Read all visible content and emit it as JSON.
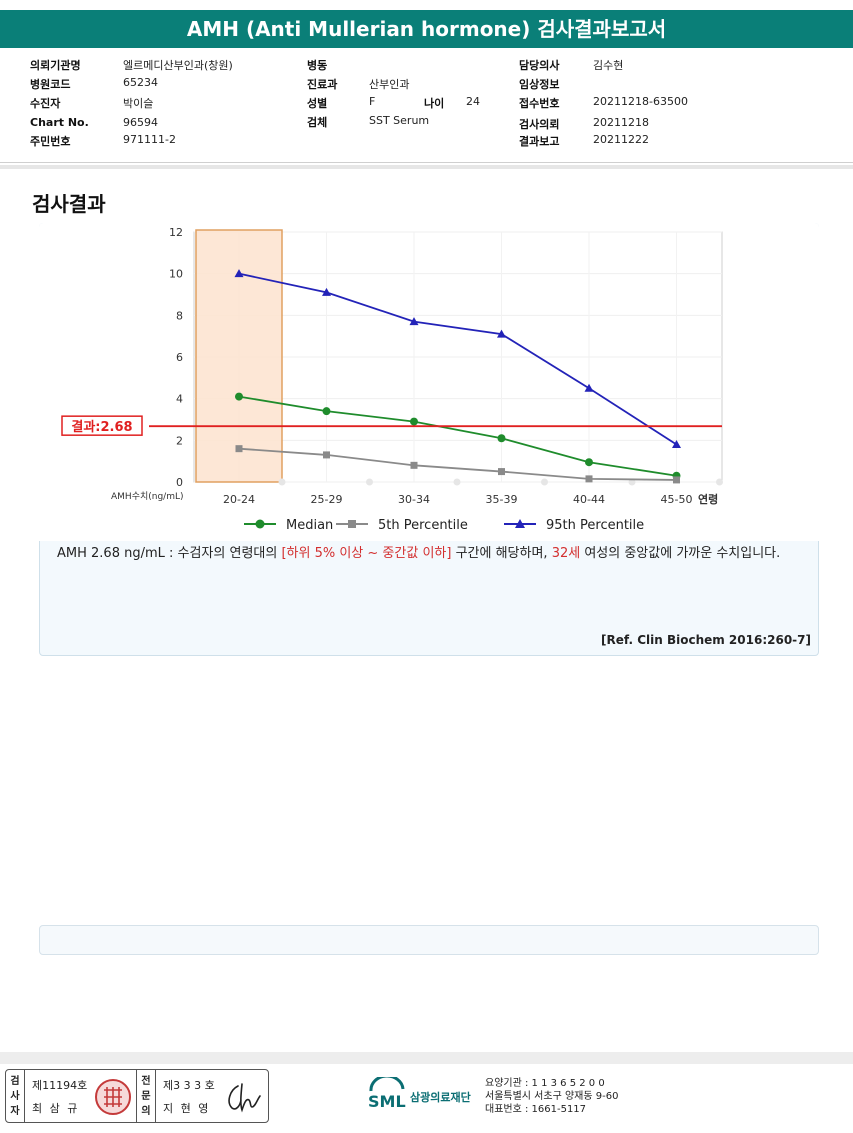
{
  "report_title": "AMH (Anti Mullerian hormone) 검사결과보고서",
  "info": {
    "institution_label": "의뢰기관명",
    "institution": "엘르메디산부인과(창원)",
    "hospital_code_label": "병원코드",
    "hospital_code": "65234",
    "patient_label": "수진자",
    "patient": "박이슬",
    "chart_no_label": "Chart No.",
    "chart_no": "96594",
    "resident_no_label": "주민번호",
    "resident_no": "971111-2",
    "ward_label": "병동",
    "ward": "",
    "department_label": "진료과",
    "department": "산부인과",
    "sex_label": "성별",
    "sex": "F",
    "age_label": "나이",
    "age": "24",
    "specimen_label": "검체",
    "specimen": "SST Serum",
    "doctor_label": "담당의사",
    "doctor": "김수현",
    "clinical_label": "임상정보",
    "clinical": "",
    "receipt_no_label": "접수번호",
    "receipt_no": "20211218-63500",
    "requested_label": "검사의뢰",
    "requested": "20211218",
    "reported_label": "결과보고",
    "reported": "20211222"
  },
  "section_title": "검사결과",
  "chart_data": {
    "type": "line",
    "categories": [
      "20-24",
      "25-29",
      "30-34",
      "35-39",
      "40-44",
      "45-50"
    ],
    "ylim": [
      0,
      12
    ],
    "yticks": [
      0,
      2,
      4,
      6,
      8,
      10,
      12
    ],
    "ylabel": "AMH수치(ng/mL)",
    "xlabel": "연령",
    "grid": true,
    "legend_position": "bottom",
    "highlight_category": "20-24",
    "result_line": {
      "value": 2.68,
      "label": "결과:2.68",
      "color": "#e02020"
    },
    "series": [
      {
        "name": "Median",
        "values": [
          4.1,
          3.4,
          2.9,
          2.1,
          0.95,
          0.3
        ],
        "color": "#1f8c2c",
        "marker": "circle"
      },
      {
        "name": "5th Percentile",
        "values": [
          1.6,
          1.3,
          0.8,
          0.5,
          0.15,
          0.1
        ],
        "color": "#8a8a8a",
        "marker": "square"
      },
      {
        "name": "95th Percentile",
        "values": [
          10.0,
          9.1,
          7.7,
          7.1,
          4.5,
          1.8
        ],
        "color": "#2323b8",
        "marker": "triangle"
      }
    ]
  },
  "description": {
    "part1": "AMH   2.68 ng/mL : 수검자의 연령대의 ",
    "highlight1": "[하위 5% 이상 ~ 중간값 이하]",
    "part2": "  구간에 해당하며, ",
    "highlight2": "32세",
    "part3": " 여성의 중앙값에 가까운 수치입니다."
  },
  "reference": "[Ref. Clin Biochem 2016:260-7]",
  "footer": {
    "examiner_label": "검사자",
    "examiner_license": "제11194호",
    "examiner_name": "최 삼 규",
    "specialist_label": "전문의",
    "specialist_license": "제3 3 3 호",
    "specialist_name": "지 현 영",
    "lab_logo_text": "SML",
    "lab_name": "삼광의료재단",
    "lab_code": "요양기관 : 1 1 3 6 5 2 0 0",
    "lab_address": "서울특별시 서초구 양재동 9-60",
    "lab_phone": "대표번호 : 1661-5117"
  }
}
